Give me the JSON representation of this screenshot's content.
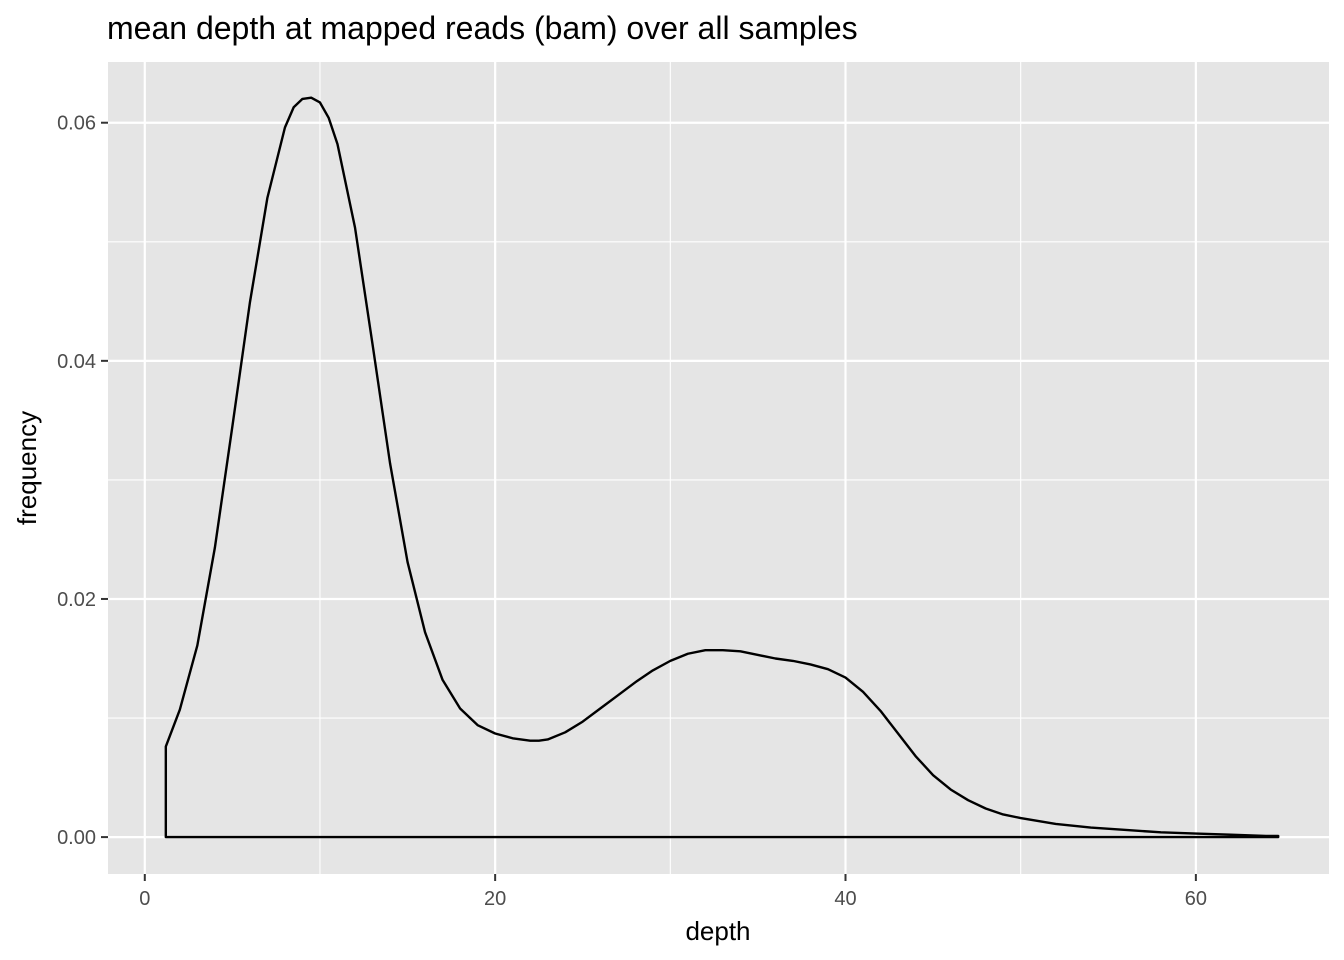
{
  "chart_data": {
    "type": "area",
    "title": "mean depth at mapped reads (bam) over all samples",
    "xlabel": "depth",
    "ylabel": "frequency",
    "xlim": [
      -2.1,
      67.6
    ],
    "ylim": [
      -0.0031,
      0.0651
    ],
    "x_ticks": [
      0,
      20,
      40,
      60
    ],
    "y_ticks": [
      0.0,
      0.02,
      0.04,
      0.06
    ],
    "x_tick_labels": [
      "0",
      "20",
      "40",
      "60"
    ],
    "y_tick_labels": [
      "0.00",
      "0.02",
      "0.04",
      "0.06"
    ],
    "grid": true,
    "legend": "none",
    "line_color": "#000000",
    "panel_color": "#e5e5e5",
    "series": [
      {
        "x": [
          1.2,
          1.2,
          2.0,
          3.0,
          4.0,
          5.0,
          6.0,
          7.0,
          8.0,
          8.5,
          9.0,
          9.5,
          10.0,
          10.5,
          11.0,
          12.0,
          13.0,
          14.0,
          15.0,
          16.0,
          17.0,
          18.0,
          19.0,
          20.0,
          21.0,
          22.0,
          22.5,
          23.0,
          24.0,
          25.0,
          26.0,
          27.0,
          28.0,
          29.0,
          30.0,
          31.0,
          32.0,
          33.0,
          34.0,
          35.0,
          36.0,
          37.0,
          38.0,
          39.0,
          40.0,
          41.0,
          42.0,
          43.0,
          44.0,
          45.0,
          46.0,
          47.0,
          48.0,
          49.0,
          50.0,
          52.0,
          54.0,
          56.0,
          58.0,
          60.0,
          62.0,
          64.0,
          64.7,
          64.7
        ],
        "y": [
          0.0,
          0.0076,
          0.0107,
          0.0161,
          0.0243,
          0.0345,
          0.0449,
          0.0537,
          0.0596,
          0.0613,
          0.062,
          0.0621,
          0.0617,
          0.0604,
          0.0582,
          0.0512,
          0.0414,
          0.0314,
          0.0231,
          0.0172,
          0.0132,
          0.0108,
          0.0094,
          0.0087,
          0.0083,
          0.0081,
          0.0081,
          0.0082,
          0.0088,
          0.0097,
          0.0108,
          0.0119,
          0.013,
          0.014,
          0.0148,
          0.0154,
          0.0157,
          0.0157,
          0.0156,
          0.0153,
          0.015,
          0.0148,
          0.0145,
          0.0141,
          0.0134,
          0.0122,
          0.0106,
          0.0087,
          0.0068,
          0.0052,
          0.004,
          0.0031,
          0.0024,
          0.0019,
          0.0016,
          0.0011,
          0.0008,
          0.0006,
          0.0004,
          0.0003,
          0.0002,
          0.0001,
          0.0001,
          0.0
        ]
      }
    ]
  }
}
